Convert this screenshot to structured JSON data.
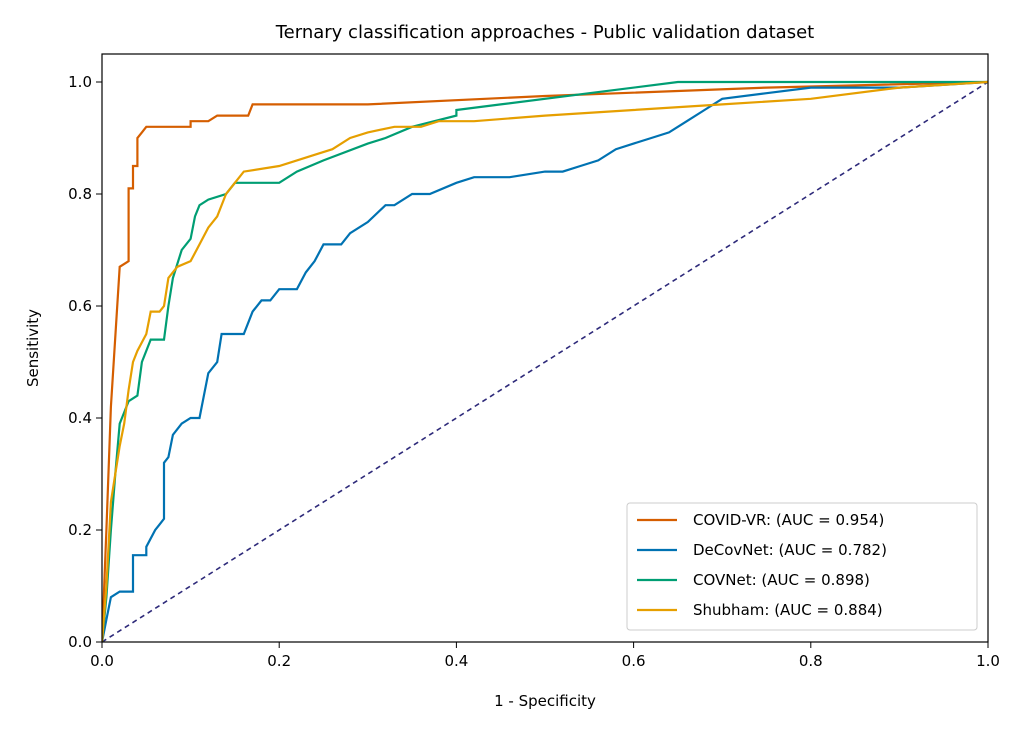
{
  "chart_data": {
    "type": "line",
    "title": "Ternary classification approaches - Public validation dataset",
    "xlabel": "1 - Specificity",
    "ylabel": "Sensitivity",
    "xlim": [
      0.0,
      1.0
    ],
    "ylim": [
      0.0,
      1.05
    ],
    "xticks": [
      "0.0",
      "0.2",
      "0.4",
      "0.6",
      "0.8",
      "1.0"
    ],
    "yticks": [
      "0.0",
      "0.2",
      "0.4",
      "0.6",
      "0.8",
      "1.0"
    ],
    "grid": false,
    "legend_position": "lower-right",
    "reference_line": {
      "x": [
        0.0,
        1.0
      ],
      "y": [
        0.0,
        1.0
      ],
      "color": "#2e2a7a",
      "style": "dashed"
    },
    "series": [
      {
        "name": "COVID-VR: (AUC = 0.954)",
        "color": "#d55e00",
        "points": [
          [
            0.0,
            0.0
          ],
          [
            0.005,
            0.2
          ],
          [
            0.01,
            0.42
          ],
          [
            0.02,
            0.67
          ],
          [
            0.03,
            0.68
          ],
          [
            0.03,
            0.81
          ],
          [
            0.035,
            0.81
          ],
          [
            0.035,
            0.85
          ],
          [
            0.04,
            0.85
          ],
          [
            0.04,
            0.9
          ],
          [
            0.045,
            0.91
          ],
          [
            0.05,
            0.92
          ],
          [
            0.1,
            0.92
          ],
          [
            0.1,
            0.93
          ],
          [
            0.12,
            0.93
          ],
          [
            0.13,
            0.94
          ],
          [
            0.165,
            0.94
          ],
          [
            0.17,
            0.96
          ],
          [
            0.3,
            0.96
          ],
          [
            0.5,
            0.975
          ],
          [
            0.75,
            0.99
          ],
          [
            1.0,
            1.0
          ]
        ]
      },
      {
        "name": "DeCovNet: (AUC = 0.782)",
        "color": "#0072b2",
        "points": [
          [
            0.0,
            0.0
          ],
          [
            0.005,
            0.04
          ],
          [
            0.01,
            0.08
          ],
          [
            0.02,
            0.09
          ],
          [
            0.035,
            0.09
          ],
          [
            0.035,
            0.155
          ],
          [
            0.05,
            0.155
          ],
          [
            0.05,
            0.17
          ],
          [
            0.06,
            0.2
          ],
          [
            0.065,
            0.21
          ],
          [
            0.07,
            0.22
          ],
          [
            0.07,
            0.32
          ],
          [
            0.075,
            0.33
          ],
          [
            0.08,
            0.37
          ],
          [
            0.09,
            0.39
          ],
          [
            0.1,
            0.4
          ],
          [
            0.11,
            0.4
          ],
          [
            0.115,
            0.44
          ],
          [
            0.12,
            0.48
          ],
          [
            0.13,
            0.5
          ],
          [
            0.135,
            0.55
          ],
          [
            0.16,
            0.55
          ],
          [
            0.17,
            0.59
          ],
          [
            0.18,
            0.61
          ],
          [
            0.19,
            0.61
          ],
          [
            0.2,
            0.63
          ],
          [
            0.22,
            0.63
          ],
          [
            0.23,
            0.66
          ],
          [
            0.24,
            0.68
          ],
          [
            0.25,
            0.71
          ],
          [
            0.27,
            0.71
          ],
          [
            0.28,
            0.73
          ],
          [
            0.3,
            0.75
          ],
          [
            0.32,
            0.78
          ],
          [
            0.33,
            0.78
          ],
          [
            0.35,
            0.8
          ],
          [
            0.37,
            0.8
          ],
          [
            0.4,
            0.82
          ],
          [
            0.42,
            0.83
          ],
          [
            0.44,
            0.83
          ],
          [
            0.46,
            0.83
          ],
          [
            0.5,
            0.84
          ],
          [
            0.52,
            0.84
          ],
          [
            0.54,
            0.85
          ],
          [
            0.56,
            0.86
          ],
          [
            0.58,
            0.88
          ],
          [
            0.6,
            0.89
          ],
          [
            0.62,
            0.9
          ],
          [
            0.64,
            0.91
          ],
          [
            0.66,
            0.93
          ],
          [
            0.68,
            0.95
          ],
          [
            0.7,
            0.97
          ],
          [
            0.75,
            0.98
          ],
          [
            0.8,
            0.99
          ],
          [
            0.9,
            0.99
          ],
          [
            1.0,
            1.0
          ]
        ]
      },
      {
        "name": "COVNet: (AUC = 0.898)",
        "color": "#009e73",
        "points": [
          [
            0.0,
            0.0
          ],
          [
            0.005,
            0.08
          ],
          [
            0.01,
            0.2
          ],
          [
            0.015,
            0.3
          ],
          [
            0.02,
            0.39
          ],
          [
            0.025,
            0.41
          ],
          [
            0.03,
            0.43
          ],
          [
            0.04,
            0.44
          ],
          [
            0.045,
            0.5
          ],
          [
            0.055,
            0.54
          ],
          [
            0.07,
            0.54
          ],
          [
            0.075,
            0.6
          ],
          [
            0.08,
            0.65
          ],
          [
            0.09,
            0.7
          ],
          [
            0.1,
            0.72
          ],
          [
            0.105,
            0.76
          ],
          [
            0.11,
            0.78
          ],
          [
            0.12,
            0.79
          ],
          [
            0.14,
            0.8
          ],
          [
            0.15,
            0.82
          ],
          [
            0.2,
            0.82
          ],
          [
            0.22,
            0.84
          ],
          [
            0.25,
            0.86
          ],
          [
            0.3,
            0.89
          ],
          [
            0.32,
            0.9
          ],
          [
            0.35,
            0.92
          ],
          [
            0.4,
            0.94
          ],
          [
            0.4,
            0.95
          ],
          [
            0.45,
            0.96
          ],
          [
            0.55,
            0.98
          ],
          [
            0.65,
            1.0
          ],
          [
            1.0,
            1.0
          ]
        ]
      },
      {
        "name": "Shubham: (AUC = 0.884)",
        "color": "#e69f00",
        "points": [
          [
            0.0,
            0.0
          ],
          [
            0.005,
            0.1
          ],
          [
            0.01,
            0.25
          ],
          [
            0.02,
            0.35
          ],
          [
            0.025,
            0.39
          ],
          [
            0.03,
            0.45
          ],
          [
            0.035,
            0.5
          ],
          [
            0.04,
            0.52
          ],
          [
            0.05,
            0.55
          ],
          [
            0.055,
            0.59
          ],
          [
            0.065,
            0.59
          ],
          [
            0.07,
            0.6
          ],
          [
            0.075,
            0.65
          ],
          [
            0.085,
            0.67
          ],
          [
            0.1,
            0.68
          ],
          [
            0.11,
            0.71
          ],
          [
            0.12,
            0.74
          ],
          [
            0.13,
            0.76
          ],
          [
            0.14,
            0.8
          ],
          [
            0.15,
            0.82
          ],
          [
            0.16,
            0.84
          ],
          [
            0.2,
            0.85
          ],
          [
            0.22,
            0.86
          ],
          [
            0.24,
            0.87
          ],
          [
            0.26,
            0.88
          ],
          [
            0.28,
            0.9
          ],
          [
            0.3,
            0.91
          ],
          [
            0.33,
            0.92
          ],
          [
            0.36,
            0.92
          ],
          [
            0.38,
            0.93
          ],
          [
            0.42,
            0.93
          ],
          [
            0.5,
            0.94
          ],
          [
            0.6,
            0.95
          ],
          [
            0.7,
            0.96
          ],
          [
            0.8,
            0.97
          ],
          [
            0.9,
            0.99
          ],
          [
            1.0,
            1.0
          ]
        ]
      }
    ]
  }
}
